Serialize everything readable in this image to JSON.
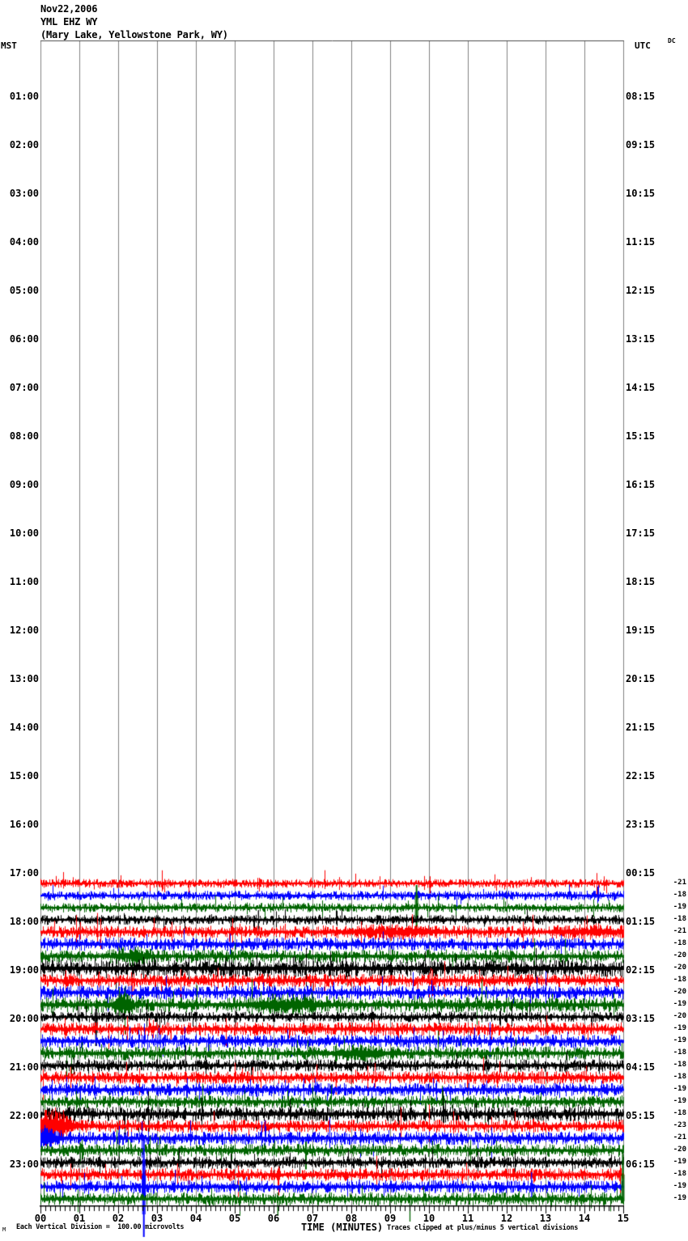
{
  "title": {
    "date": "Nov22,2006",
    "station": "YML EHZ WY",
    "location": "(Mary Lake, Yellowstone Park, WY)"
  },
  "corner_labels": {
    "left_axis": "MST",
    "right_axis": "UTC",
    "dc_column": "DC"
  },
  "footer": {
    "watermark": "M",
    "scale_note": "Each Vertical Division =  100.00 microvolts",
    "xaxis_title": "TIME (MINUTES)",
    "clip_note": "Traces clipped at plus/minus 5 vertical divisions"
  },
  "chart_data": {
    "type": "line",
    "subtype": "helicorder-seismogram",
    "plot": {
      "minutes_per_line": 15,
      "x_tick_labels": [
        "00",
        "01",
        "02",
        "03",
        "04",
        "05",
        "06",
        "07",
        "08",
        "09",
        "10",
        "11",
        "12",
        "13",
        "14",
        "15"
      ],
      "minor_ticks_per_minute": 8,
      "microvolts_per_division": "100.00",
      "clip_divisions": 5,
      "grid": true
    },
    "left_time_labels_mst": [
      "01:00",
      "02:00",
      "03:00",
      "04:00",
      "05:00",
      "06:00",
      "07:00",
      "08:00",
      "09:00",
      "10:00",
      "11:00",
      "12:00",
      "13:00",
      "14:00",
      "15:00",
      "16:00",
      "17:00",
      "18:00",
      "19:00",
      "20:00",
      "21:00",
      "22:00",
      "23:00"
    ],
    "right_time_labels_utc": [
      "08:15",
      "09:15",
      "10:15",
      "11:15",
      "12:15",
      "13:15",
      "14:15",
      "15:15",
      "16:15",
      "17:15",
      "18:15",
      "19:15",
      "20:15",
      "21:15",
      "22:15",
      "23:15",
      "00:15",
      "01:15",
      "02:15",
      "03:15",
      "04:15",
      "05:15",
      "06:15"
    ],
    "palette": {
      "red": "#ff0000",
      "blue": "#0000ff",
      "green": "#006400",
      "black": "#000000",
      "grid": "#808080",
      "axis": "#000000"
    },
    "traces": [
      {
        "mst": "17:00",
        "color": "red",
        "dc": -21,
        "noise": 3.2,
        "events": []
      },
      {
        "mst": "17:15",
        "color": "blue",
        "dc": -18,
        "noise": 3.4,
        "events": []
      },
      {
        "mst": "17:30",
        "color": "green",
        "dc": -19,
        "noise": 3.4,
        "events": [
          {
            "type": "spike",
            "m": 9.67,
            "up": 28,
            "down": 32,
            "thick": true
          }
        ]
      },
      {
        "mst": "17:45",
        "color": "black",
        "dc": -18,
        "noise": 3.6,
        "events": [
          {
            "type": "spike",
            "m": 5.6,
            "up": 12,
            "down": 17
          }
        ]
      },
      {
        "mst": "18:00",
        "color": "red",
        "dc": -21,
        "noise": 4.4,
        "events": [
          {
            "type": "burst",
            "m": 9.0,
            "amp": 3,
            "w": 1.2
          },
          {
            "type": "burst",
            "m": 14.2,
            "amp": 3,
            "w": 0.8
          }
        ]
      },
      {
        "mst": "18:15",
        "color": "blue",
        "dc": -18,
        "noise": 4.8,
        "events": []
      },
      {
        "mst": "18:30",
        "color": "green",
        "dc": -20,
        "noise": 4.8,
        "events": [
          {
            "type": "burst",
            "m": 2.4,
            "amp": 5,
            "w": 0.4
          }
        ]
      },
      {
        "mst": "18:45",
        "color": "black",
        "dc": -20,
        "noise": 6.2,
        "events": [
          {
            "type": "spike",
            "m": 6.3,
            "up": 6,
            "down": 14
          }
        ]
      },
      {
        "mst": "19:00",
        "color": "red",
        "dc": -18,
        "noise": 4.8,
        "events": [
          {
            "type": "spike",
            "m": 9.7,
            "up": 5,
            "down": 12
          }
        ]
      },
      {
        "mst": "19:15",
        "color": "blue",
        "dc": -20,
        "noise": 5.0,
        "events": []
      },
      {
        "mst": "19:30",
        "color": "green",
        "dc": -19,
        "noise": 5.6,
        "events": [
          {
            "type": "burst",
            "m": 2.15,
            "amp": 7,
            "w": 0.25
          },
          {
            "type": "burst",
            "m": 6.3,
            "amp": 5,
            "w": 0.8
          }
        ]
      },
      {
        "mst": "19:45",
        "color": "black",
        "dc": -20,
        "noise": 3.8,
        "events": [
          {
            "type": "spike",
            "m": 1.42,
            "up": 10,
            "down": 36,
            "thick": true
          }
        ]
      },
      {
        "mst": "20:00",
        "color": "red",
        "dc": -19,
        "noise": 4.8,
        "events": [
          {
            "type": "spike",
            "m": 3.35,
            "up": 4,
            "down": 13
          }
        ]
      },
      {
        "mst": "20:15",
        "color": "blue",
        "dc": -19,
        "noise": 4.8,
        "events": [
          {
            "type": "spike",
            "m": 9.7,
            "up": 6,
            "down": 11
          }
        ]
      },
      {
        "mst": "20:30",
        "color": "green",
        "dc": -18,
        "noise": 5.0,
        "events": [
          {
            "type": "burst",
            "m": 8.2,
            "amp": 5,
            "w": 0.5
          }
        ]
      },
      {
        "mst": "20:45",
        "color": "black",
        "dc": -18,
        "noise": 4.4,
        "events": [
          {
            "type": "spike",
            "m": 5.42,
            "up": 6,
            "down": 13
          }
        ]
      },
      {
        "mst": "21:00",
        "color": "red",
        "dc": -18,
        "noise": 4.6,
        "events": [
          {
            "type": "spike",
            "m": 7.6,
            "up": 7,
            "down": 21
          }
        ]
      },
      {
        "mst": "21:15",
        "color": "blue",
        "dc": -19,
        "noise": 4.8,
        "events": []
      },
      {
        "mst": "21:30",
        "color": "green",
        "dc": -19,
        "noise": 4.6,
        "events": []
      },
      {
        "mst": "21:45",
        "color": "black",
        "dc": -18,
        "noise": 5.4,
        "events": []
      },
      {
        "mst": "22:00",
        "color": "red",
        "dc": -23,
        "noise": 4.6,
        "events": [
          {
            "type": "spike",
            "m": 0.12,
            "up": 20,
            "down": 24,
            "thick": true
          },
          {
            "type": "burst",
            "m": 0.3,
            "amp": 14,
            "w": 0.5
          }
        ]
      },
      {
        "mst": "22:15",
        "color": "blue",
        "dc": -21,
        "noise": 4.8,
        "events": [
          {
            "type": "burst",
            "m": 0.12,
            "amp": 9,
            "w": 0.3
          }
        ]
      },
      {
        "mst": "22:30",
        "color": "green",
        "dc": -20,
        "noise": 4.6,
        "events": []
      },
      {
        "mst": "22:45",
        "color": "black",
        "dc": -19,
        "noise": 4.4,
        "events": []
      },
      {
        "mst": "23:00",
        "color": "red",
        "dc": -18,
        "noise": 4.6,
        "events": [
          {
            "type": "spike",
            "m": 3.8,
            "up": 7,
            "down": 12
          }
        ]
      },
      {
        "mst": "23:15",
        "color": "blue",
        "dc": -19,
        "noise": 4.6,
        "events": [
          {
            "type": "spike",
            "m": 2.65,
            "up": 62,
            "down": 62,
            "thick": true,
            "blob": 14
          },
          {
            "type": "spike",
            "m": 8.2,
            "up": 9,
            "down": 9
          },
          {
            "type": "spike",
            "m": 10.15,
            "up": 8,
            "down": 8
          },
          {
            "type": "spike",
            "m": 12.63,
            "up": 18,
            "down": 13
          }
        ]
      },
      {
        "mst": "23:30",
        "color": "green",
        "dc": -19,
        "noise": 4.8,
        "events": [
          {
            "type": "spike",
            "m": 6.1,
            "up": 8,
            "down": 20
          },
          {
            "type": "spike",
            "m": 9.5,
            "up": 6,
            "down": 28
          },
          {
            "type": "spike",
            "m": 14.5,
            "up": 4,
            "down": 12
          },
          {
            "type": "spike",
            "m": 15.0,
            "up": 55,
            "down": 5,
            "thick": true
          }
        ]
      }
    ]
  }
}
